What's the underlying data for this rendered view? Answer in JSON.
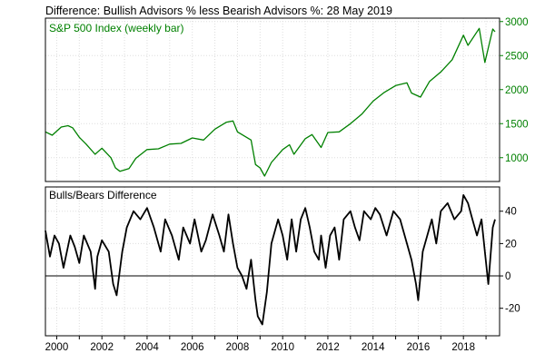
{
  "chart_data": [
    {
      "type": "line",
      "title": "Difference: Bullish Advisors % less Bearish Advisors %: 28 May 2019",
      "series": [
        {
          "name": "S&P 500 Index (weekly bar)",
          "color": "#008000",
          "x": [
            1999.5,
            1999.8,
            2000.2,
            2000.5,
            2000.7,
            2001.0,
            2001.3,
            2001.7,
            2002.0,
            2002.4,
            2002.6,
            2002.8,
            2003.2,
            2003.5,
            2004.0,
            2004.5,
            2005.0,
            2005.5,
            2006.0,
            2006.5,
            2007.0,
            2007.5,
            2007.8,
            2008.0,
            2008.3,
            2008.6,
            2008.8,
            2009.0,
            2009.2,
            2009.5,
            2010.0,
            2010.3,
            2010.5,
            2011.0,
            2011.3,
            2011.7,
            2012.0,
            2012.5,
            2013.0,
            2013.5,
            2014.0,
            2014.5,
            2015.0,
            2015.5,
            2015.7,
            2016.1,
            2016.5,
            2017.0,
            2017.5,
            2018.0,
            2018.2,
            2018.7,
            2018.95,
            2019.3,
            2019.4
          ],
          "values": [
            1380,
            1330,
            1450,
            1470,
            1440,
            1300,
            1200,
            1050,
            1140,
            1000,
            850,
            800,
            840,
            990,
            1120,
            1130,
            1200,
            1210,
            1290,
            1260,
            1420,
            1520,
            1540,
            1380,
            1320,
            1260,
            900,
            850,
            730,
            930,
            1120,
            1190,
            1050,
            1280,
            1340,
            1150,
            1370,
            1380,
            1500,
            1640,
            1830,
            1960,
            2060,
            2100,
            1950,
            1890,
            2120,
            2260,
            2440,
            2800,
            2650,
            2900,
            2400,
            2890,
            2850
          ]
        },
        {
          "name": "Bulls/Bears Difference",
          "color": "#000000",
          "x": [
            1999.5,
            1999.7,
            1999.9,
            2000.1,
            2000.3,
            2000.6,
            2000.8,
            2001.0,
            2001.2,
            2001.5,
            2001.7,
            2001.8,
            2002.0,
            2002.3,
            2002.5,
            2002.65,
            2002.9,
            2003.1,
            2003.4,
            2003.7,
            2004.0,
            2004.3,
            2004.6,
            2004.8,
            2005.1,
            2005.4,
            2005.6,
            2005.9,
            2006.1,
            2006.4,
            2006.6,
            2006.9,
            2007.2,
            2007.4,
            2007.6,
            2007.8,
            2008.0,
            2008.2,
            2008.4,
            2008.6,
            2008.8,
            2008.9,
            2009.1,
            2009.3,
            2009.5,
            2009.8,
            2010.0,
            2010.2,
            2010.4,
            2010.6,
            2010.8,
            2011.0,
            2011.2,
            2011.4,
            2011.6,
            2011.7,
            2011.9,
            2012.1,
            2012.3,
            2012.5,
            2012.7,
            2013.0,
            2013.2,
            2013.4,
            2013.6,
            2013.9,
            2014.1,
            2014.3,
            2014.6,
            2014.9,
            2015.2,
            2015.5,
            2015.7,
            2015.9,
            2016.0,
            2016.2,
            2016.4,
            2016.6,
            2016.8,
            2017.0,
            2017.3,
            2017.6,
            2017.9,
            2018.0,
            2018.2,
            2018.4,
            2018.6,
            2018.8,
            2018.95,
            2019.1,
            2019.3,
            2019.4
          ],
          "values": [
            28,
            12,
            25,
            20,
            5,
            25,
            18,
            8,
            25,
            15,
            -8,
            12,
            22,
            15,
            -5,
            -12,
            15,
            30,
            40,
            35,
            42,
            30,
            15,
            35,
            25,
            10,
            30,
            20,
            35,
            15,
            22,
            38,
            25,
            15,
            38,
            20,
            5,
            0,
            -8,
            10,
            -15,
            -25,
            -30,
            -10,
            20,
            35,
            25,
            10,
            35,
            15,
            35,
            42,
            30,
            15,
            10,
            25,
            5,
            25,
            30,
            10,
            35,
            40,
            30,
            22,
            40,
            35,
            42,
            38,
            25,
            40,
            35,
            20,
            10,
            -5,
            -15,
            15,
            25,
            35,
            20,
            40,
            45,
            35,
            40,
            50,
            45,
            35,
            25,
            35,
            15,
            -5,
            30,
            35
          ]
        }
      ],
      "x_ticks": [
        "2000",
        "2002",
        "2004",
        "2006",
        "2008",
        "2010",
        "2012",
        "2014",
        "2016",
        "2018"
      ],
      "xlim": [
        1999.5,
        2019.6
      ],
      "panels": [
        {
          "label": "S&P 500 Index (weekly bar)",
          "ylim": [
            650,
            3050
          ],
          "y_ticks": [
            "3000",
            "2500",
            "2000",
            "1500",
            "1000"
          ],
          "y_tick_color": "#008000"
        },
        {
          "label": "Bulls/Bears Difference",
          "ylim": [
            -37,
            55
          ],
          "y_ticks": [
            "40",
            "20",
            "0",
            "-20"
          ],
          "y_tick_color": "#000000",
          "reference_line": 0
        }
      ],
      "grid": true
    }
  ]
}
